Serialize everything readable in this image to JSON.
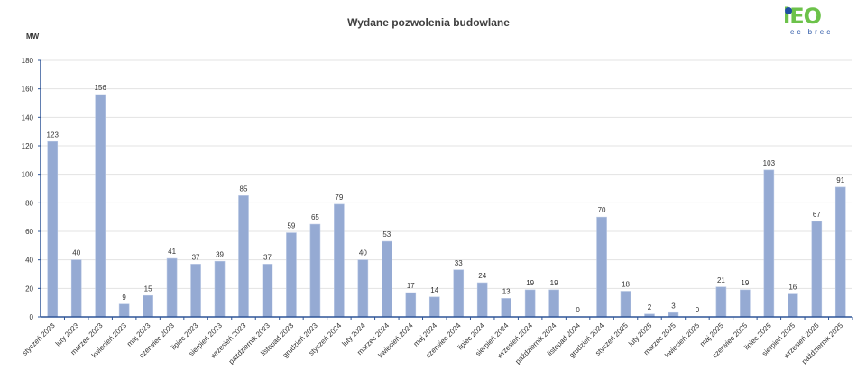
{
  "title": "Wydane pozwolenia budowlane",
  "unit_label": "MW",
  "logo": {
    "mark": "iEO",
    "sub": "ec brec"
  },
  "colors": {
    "bar": "#95aad3",
    "bar_border": "#b7c6e3",
    "axis": "#2e5597",
    "grid": "#e3e3e3",
    "text": "#404040"
  },
  "chart_data": {
    "type": "bar",
    "title": "Wydane pozwolenia budowlane",
    "xlabel": "",
    "ylabel": "MW",
    "ylim": [
      0,
      180
    ],
    "yticks": [
      0,
      20,
      40,
      60,
      80,
      100,
      120,
      140,
      160,
      180
    ],
    "grid": true,
    "legend": "none",
    "data_labels": true,
    "categories": [
      "styczeń 2023",
      "luty 2023",
      "marzec 2023",
      "kwiecień 2023",
      "maj 2023",
      "czerwiec 2023",
      "lipiec 2023",
      "sierpień 2023",
      "wrzesień 2023",
      "październik 2023",
      "listopad 2023",
      "grudzień 2023",
      "styczeń 2024",
      "luty 2024",
      "marzec 2024",
      "kwiecień 2024",
      "maj 2024",
      "czerwiec 2024",
      "lipiec 2024",
      "sierpień 2024",
      "wrzesień 2024",
      "październik 2024",
      "listopad 2024",
      "grudzień 2024",
      "styczeń 2025",
      "luty 2025",
      "marzec 2025",
      "kwiecień 2025",
      "maj 2025",
      "czerwiec 2025",
      "lipiec 2025",
      "sierpień 2025",
      "wrzesień 2025",
      "październik 2025"
    ],
    "values": [
      123,
      40,
      156,
      9,
      15,
      41,
      37,
      39,
      85,
      37,
      59,
      65,
      79,
      40,
      53,
      17,
      14,
      33,
      24,
      13,
      19,
      19,
      0,
      70,
      18,
      2,
      3,
      0,
      21,
      19,
      103,
      16,
      67,
      91
    ]
  }
}
